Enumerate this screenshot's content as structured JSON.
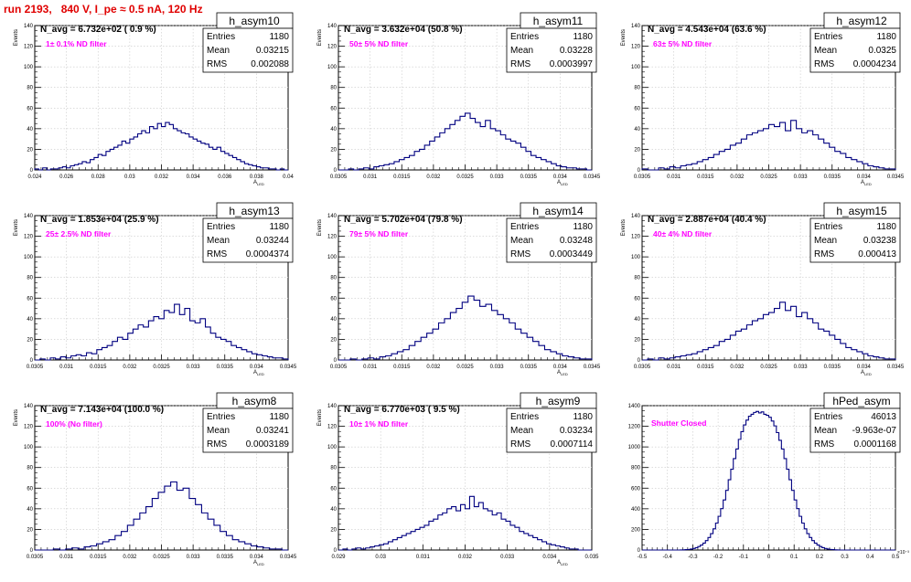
{
  "title": "run 2193,   840 V, I_pe ≈ 0.5 nA, 120 Hz",
  "colors": {
    "title": "#e00000",
    "histogram": "#000080",
    "annotation": "#ff00ff",
    "grid": "#c8c8c8"
  },
  "stats_labels": {
    "entries": "Entries",
    "mean": "Mean",
    "rms": "RMS"
  },
  "y_axis_label": "Events",
  "x_axis_label": "A",
  "x_axis_label_sub": "LED",
  "chart_data": [
    {
      "type": "histogram",
      "name": "h_asym10",
      "navg": "N_avg = 6.732e+02 ( 0.9 %)",
      "note": "1± 0.1% ND filter",
      "stats": {
        "entries": "1180",
        "mean": "0.03215",
        "rms": "0.002088"
      },
      "xlim": [
        0.024,
        0.04
      ],
      "ylim": [
        0,
        140
      ],
      "x_ticks": [
        "0.024",
        "0.026",
        "0.028",
        "0.03",
        "0.032",
        "0.034",
        "0.036",
        "0.038",
        "0.04"
      ],
      "y_ticks": [
        "0",
        "20",
        "40",
        "60",
        "80",
        "100",
        "120",
        "140"
      ],
      "xlabel": "A",
      "ylabel": "Events",
      "grid": true,
      "values": [
        1,
        0,
        2,
        0,
        1,
        1,
        2,
        3,
        2,
        4,
        5,
        6,
        8,
        7,
        10,
        12,
        15,
        14,
        18,
        20,
        22,
        24,
        28,
        26,
        30,
        32,
        35,
        38,
        36,
        42,
        40,
        45,
        42,
        46,
        44,
        40,
        38,
        36,
        35,
        32,
        30,
        28,
        26,
        25,
        22,
        20,
        22,
        18,
        16,
        14,
        12,
        10,
        8,
        6,
        5,
        4,
        3,
        2,
        2,
        1,
        1,
        0,
        1,
        0
      ]
    },
    {
      "type": "histogram",
      "name": "h_asym11",
      "navg": "N_avg = 3.632e+04 (50.8 %)",
      "note": "50± 5% ND filter",
      "stats": {
        "entries": "1180",
        "mean": "0.03228",
        "rms": "0.0003997"
      },
      "xlim": [
        0.0305,
        0.0345
      ],
      "ylim": [
        0,
        140
      ],
      "x_ticks": [
        "0.0305",
        "0.031",
        "0.0315",
        "0.032",
        "0.0325",
        "0.033",
        "0.0335",
        "0.034",
        "0.0345"
      ],
      "y_ticks": [
        "0",
        "20",
        "40",
        "60",
        "80",
        "100",
        "120",
        "140"
      ],
      "xlabel": "A",
      "ylabel": "Events",
      "grid": true,
      "values": [
        0,
        0,
        1,
        0,
        1,
        2,
        1,
        3,
        4,
        5,
        6,
        8,
        10,
        12,
        14,
        18,
        20,
        24,
        28,
        32,
        36,
        40,
        44,
        48,
        52,
        55,
        50,
        46,
        42,
        48,
        40,
        38,
        34,
        30,
        28,
        26,
        22,
        18,
        14,
        12,
        10,
        8,
        6,
        4,
        3,
        2,
        2,
        1,
        1,
        0
      ]
    },
    {
      "type": "histogram",
      "name": "h_asym12",
      "navg": "N_avg = 4.543e+04 (63.6 %)",
      "note": "63± 5% ND filter",
      "stats": {
        "entries": "1180",
        "mean": "0.0325",
        "rms": "0.0004234"
      },
      "xlim": [
        0.0305,
        0.0345
      ],
      "ylim": [
        0,
        140
      ],
      "x_ticks": [
        "0.0305",
        "0.031",
        "0.0315",
        "0.032",
        "0.0325",
        "0.033",
        "0.0335",
        "0.034",
        "0.0345"
      ],
      "y_ticks": [
        "0",
        "20",
        "40",
        "60",
        "80",
        "100",
        "120",
        "140"
      ],
      "xlabel": "A",
      "ylabel": "Events",
      "grid": true,
      "values": [
        1,
        0,
        0,
        2,
        1,
        3,
        2,
        4,
        5,
        6,
        8,
        10,
        12,
        15,
        18,
        20,
        24,
        26,
        30,
        34,
        36,
        38,
        40,
        44,
        42,
        46,
        38,
        48,
        40,
        36,
        38,
        34,
        30,
        26,
        22,
        18,
        16,
        12,
        10,
        8,
        6,
        4,
        3,
        2,
        1,
        1
      ]
    },
    {
      "type": "histogram",
      "name": "h_asym13",
      "navg": "N_avg = 1.853e+04 (25.9 %)",
      "note": "25± 2.5% ND filter",
      "stats": {
        "entries": "1180",
        "mean": "0.03244",
        "rms": "0.0004374"
      },
      "xlim": [
        0.0305,
        0.0345
      ],
      "ylim": [
        0,
        140
      ],
      "x_ticks": [
        "0.0305",
        "0.031",
        "0.0315",
        "0.032",
        "0.0325",
        "0.033",
        "0.0335",
        "0.034",
        "0.0345"
      ],
      "y_ticks": [
        "0",
        "20",
        "40",
        "60",
        "80",
        "100",
        "120",
        "140"
      ],
      "xlabel": "A",
      "ylabel": "Events",
      "grid": true,
      "values": [
        0,
        1,
        0,
        2,
        1,
        3,
        2,
        4,
        5,
        4,
        7,
        6,
        10,
        12,
        14,
        18,
        22,
        20,
        26,
        30,
        34,
        32,
        38,
        42,
        40,
        48,
        46,
        54,
        44,
        50,
        38,
        36,
        40,
        32,
        26,
        22,
        20,
        18,
        14,
        12,
        10,
        8,
        6,
        5,
        4,
        3,
        2,
        2,
        1
      ]
    },
    {
      "type": "histogram",
      "name": "h_asym14",
      "navg": "N_avg = 5.702e+04 (79.8 %)",
      "note": "79± 5% ND filter",
      "stats": {
        "entries": "1180",
        "mean": "0.03248",
        "rms": "0.0003449"
      },
      "xlim": [
        0.0305,
        0.0345
      ],
      "ylim": [
        0,
        140
      ],
      "x_ticks": [
        "0.0305",
        "0.031",
        "0.0315",
        "0.032",
        "0.0325",
        "0.033",
        "0.0335",
        "0.034",
        "0.0345"
      ],
      "y_ticks": [
        "0",
        "20",
        "40",
        "60",
        "80",
        "100",
        "120",
        "140"
      ],
      "xlabel": "A",
      "ylabel": "Events",
      "grid": true,
      "values": [
        0,
        0,
        1,
        0,
        1,
        2,
        1,
        3,
        4,
        6,
        8,
        10,
        14,
        18,
        22,
        26,
        30,
        36,
        40,
        46,
        50,
        56,
        62,
        58,
        52,
        54,
        48,
        44,
        40,
        36,
        30,
        26,
        22,
        18,
        14,
        10,
        8,
        6,
        4,
        3,
        2,
        1,
        1
      ]
    },
    {
      "type": "histogram",
      "name": "h_asym15",
      "navg": "N_avg = 2.887e+04 (40.4 %)",
      "note": "40± 4% ND filter",
      "stats": {
        "entries": "1180",
        "mean": "0.03238",
        "rms": "0.000413"
      },
      "xlim": [
        0.0305,
        0.0345
      ],
      "ylim": [
        0,
        140
      ],
      "x_ticks": [
        "0.0305",
        "0.031",
        "0.0315",
        "0.032",
        "0.0325",
        "0.033",
        "0.0335",
        "0.034",
        "0.0345"
      ],
      "y_ticks": [
        "0",
        "20",
        "40",
        "60",
        "80",
        "100",
        "120",
        "140"
      ],
      "xlabel": "A",
      "ylabel": "Events",
      "grid": true,
      "values": [
        0,
        1,
        0,
        2,
        1,
        2,
        3,
        4,
        5,
        6,
        8,
        10,
        12,
        14,
        18,
        20,
        24,
        28,
        30,
        34,
        38,
        40,
        44,
        46,
        50,
        56,
        48,
        52,
        42,
        46,
        40,
        36,
        30,
        28,
        24,
        20,
        16,
        12,
        10,
        8,
        6,
        4,
        3,
        2,
        1,
        1
      ]
    },
    {
      "type": "histogram",
      "name": "h_asym8",
      "navg": "N_avg = 7.143e+04 (100.0 %)",
      "note": "100% (No filter)",
      "stats": {
        "entries": "1180",
        "mean": "0.03241",
        "rms": "0.0003189"
      },
      "xlim": [
        0.0305,
        0.0345
      ],
      "ylim": [
        0,
        140
      ],
      "x_ticks": [
        "0.0305",
        "0.031",
        "0.0315",
        "0.032",
        "0.0325",
        "0.033",
        "0.0335",
        "0.034",
        "0.0345"
      ],
      "y_ticks": [
        "0",
        "20",
        "40",
        "60",
        "80",
        "100",
        "120",
        "140"
      ],
      "xlabel": "A",
      "ylabel": "Events",
      "grid": true,
      "values": [
        0,
        0,
        0,
        1,
        0,
        1,
        2,
        1,
        3,
        4,
        6,
        8,
        10,
        14,
        18,
        24,
        30,
        36,
        42,
        50,
        56,
        62,
        66,
        58,
        60,
        50,
        44,
        36,
        30,
        24,
        18,
        14,
        10,
        8,
        6,
        4,
        3,
        2,
        1,
        1,
        0
      ]
    },
    {
      "type": "histogram",
      "name": "h_asym9",
      "navg": "N_avg = 6.770e+03 ( 9.5 %)",
      "note": "10± 1% ND filter",
      "stats": {
        "entries": "1180",
        "mean": "0.03234",
        "rms": "0.0007114"
      },
      "xlim": [
        0.029,
        0.035
      ],
      "ylim": [
        0,
        140
      ],
      "x_ticks": [
        "0.029",
        "0.03",
        "0.031",
        "0.032",
        "0.033",
        "0.034",
        "0.035"
      ],
      "y_ticks": [
        "0",
        "20",
        "40",
        "60",
        "80",
        "100",
        "120",
        "140"
      ],
      "xlabel": "A",
      "ylabel": "Events",
      "grid": true,
      "values": [
        0,
        1,
        0,
        1,
        2,
        1,
        2,
        3,
        4,
        5,
        6,
        8,
        10,
        12,
        14,
        16,
        18,
        20,
        22,
        24,
        28,
        30,
        34,
        36,
        40,
        42,
        38,
        44,
        40,
        52,
        42,
        46,
        40,
        38,
        34,
        36,
        30,
        28,
        24,
        22,
        18,
        16,
        14,
        12,
        10,
        8,
        6,
        5,
        4,
        3,
        2,
        1,
        1,
        0,
        0,
        0
      ]
    },
    {
      "type": "histogram",
      "name": "hPed_asym",
      "navg": "",
      "note": "Shutter Closed",
      "stats": {
        "entries": "46013",
        "mean": "-9.963e-07",
        "rms": "0.0001168"
      },
      "xlim": [
        -0.5,
        0.5
      ],
      "ylim": [
        0,
        1500
      ],
      "x_exponent": "×10⁻³",
      "x_ticks": [
        "-0.5",
        "-0.4",
        "-0.3",
        "-0.2",
        "-0.1",
        "0",
        "0.1",
        "0.2",
        "0.3",
        "0.4",
        "0.5"
      ],
      "y_ticks": [
        "0",
        "200",
        "400",
        "600",
        "800",
        "1000",
        "1200",
        "1400"
      ],
      "xlabel": "",
      "ylabel": "",
      "grid": true,
      "values": [
        0,
        0,
        0,
        0,
        0,
        0,
        0,
        0,
        0,
        0,
        0,
        0,
        0,
        0,
        0,
        1,
        2,
        4,
        6,
        10,
        16,
        24,
        36,
        52,
        72,
        98,
        130,
        170,
        220,
        280,
        350,
        430,
        520,
        620,
        730,
        840,
        950,
        1050,
        1150,
        1230,
        1300,
        1350,
        1390,
        1410,
        1430,
        1440,
        1425,
        1435,
        1410,
        1400,
        1380,
        1340,
        1290,
        1220,
        1140,
        1050,
        950,
        840,
        730,
        620,
        520,
        430,
        350,
        280,
        220,
        170,
        130,
        98,
        72,
        52,
        36,
        24,
        16,
        10,
        6,
        4,
        2,
        1,
        0,
        0,
        0,
        0,
        0,
        0,
        0,
        0,
        0,
        0,
        0,
        0,
        0,
        0,
        0,
        0,
        0,
        0,
        0,
        0,
        0,
        0
      ]
    }
  ]
}
